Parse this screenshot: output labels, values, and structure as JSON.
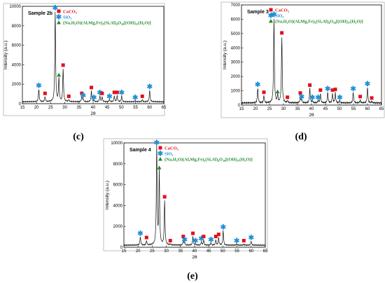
{
  "figure_labels": [
    "(c)",
    "(d)",
    "(e)"
  ],
  "colors": {
    "line": "#111111",
    "CaCO3": "#e0111c",
    "SiO2": "#1f8fd6",
    "mineral": "#1f8a2c"
  },
  "chart_data": [
    {
      "type": "line",
      "panel": "c",
      "sample_label": "Sample 2b",
      "xlabel": "2θ",
      "ylabel": "Intensity (a.u.)",
      "xlim": [
        15,
        65
      ],
      "ylim": [
        0,
        10000
      ],
      "xticks": [
        "15",
        "20",
        "25",
        "30",
        "35",
        "40",
        "45",
        "50",
        "55",
        "60",
        "65"
      ],
      "yticks": [
        "0",
        "2000",
        "4000",
        "6000",
        "8000",
        "10000"
      ],
      "legend": [
        {
          "name": "CaCO₃",
          "marker": "square",
          "color": "#e0111c"
        },
        {
          "name": "SiO₂",
          "marker": "asterisk",
          "color": "#1f8fd6"
        },
        {
          "name": "(Na,H₂O)(Al,Mg,Fe)₂(Si,Al)₄O₁₀[(OH)₂,(H₂O)]",
          "marker": "triangle",
          "color": "#1f8a2c"
        }
      ],
      "baseline": 200,
      "peaks": [
        {
          "x": 20.8,
          "y": 1500,
          "phase": "SiO2"
        },
        {
          "x": 23.0,
          "y": 700,
          "phase": "CaCO3"
        },
        {
          "x": 26.6,
          "y": 9500,
          "phase": "SiO2"
        },
        {
          "x": 27.9,
          "y": 2600,
          "phase": "mineral"
        },
        {
          "x": 29.4,
          "y": 3600,
          "phase": "CaCO3"
        },
        {
          "x": 31.4,
          "y": 400,
          "phase": "CaCO3"
        },
        {
          "x": 36.0,
          "y": 700,
          "phase": "CaCO3"
        },
        {
          "x": 36.5,
          "y": 500,
          "phase": "SiO2"
        },
        {
          "x": 39.4,
          "y": 1300,
          "phase": "CaCO3"
        },
        {
          "x": 40.3,
          "y": 300,
          "phase": "SiO2"
        },
        {
          "x": 42.4,
          "y": 800,
          "phase": "SiO2"
        },
        {
          "x": 43.2,
          "y": 700,
          "phase": "CaCO3"
        },
        {
          "x": 45.8,
          "y": 400,
          "phase": "SiO2"
        },
        {
          "x": 47.5,
          "y": 800,
          "phase": "CaCO3"
        },
        {
          "x": 48.5,
          "y": 800,
          "phase": "CaCO3"
        },
        {
          "x": 50.1,
          "y": 800,
          "phase": "SiO2"
        },
        {
          "x": 54.9,
          "y": 300,
          "phase": "SiO2"
        },
        {
          "x": 57.4,
          "y": 400,
          "phase": "CaCO3"
        },
        {
          "x": 60.0,
          "y": 1400,
          "phase": "SiO2"
        }
      ]
    },
    {
      "type": "line",
      "panel": "d",
      "sample_label": "Sample 3",
      "xlabel": "2θ",
      "ylabel": "Intensity (a.u.)",
      "xlim": [
        15,
        65
      ],
      "ylim": [
        0,
        7000
      ],
      "xticks": [
        "15",
        "20",
        "25",
        "30",
        "35",
        "40",
        "45",
        "50",
        "55",
        "60",
        "65"
      ],
      "yticks": [
        "0",
        "1000",
        "2000",
        "3000",
        "4000",
        "5000",
        "6000",
        "7000"
      ],
      "legend": [
        {
          "name": "CaCO₃",
          "marker": "square",
          "color": "#e0111c"
        },
        {
          "name": "SiO₂",
          "marker": "asterisk",
          "color": "#1f8fd6"
        },
        {
          "name": "(Na,H₂O)(Al,Mg,Fe)₂(Si,Al)₄O₁₀[(OH)₂,(H₂O)]",
          "marker": "triangle",
          "color": "#1f8a2c"
        }
      ],
      "baseline": 150,
      "peaks": [
        {
          "x": 20.8,
          "y": 1200,
          "phase": "SiO2"
        },
        {
          "x": 23.0,
          "y": 650,
          "phase": "CaCO3"
        },
        {
          "x": 26.6,
          "y": 6100,
          "phase": "SiO2"
        },
        {
          "x": 27.9,
          "y": 700,
          "phase": "mineral"
        },
        {
          "x": 29.4,
          "y": 4800,
          "phase": "CaCO3"
        },
        {
          "x": 31.4,
          "y": 300,
          "phase": "CaCO3"
        },
        {
          "x": 36.0,
          "y": 600,
          "phase": "CaCO3"
        },
        {
          "x": 36.5,
          "y": 350,
          "phase": "SiO2"
        },
        {
          "x": 39.4,
          "y": 1150,
          "phase": "CaCO3"
        },
        {
          "x": 40.3,
          "y": 300,
          "phase": "SiO2"
        },
        {
          "x": 42.4,
          "y": 300,
          "phase": "SiO2"
        },
        {
          "x": 43.2,
          "y": 800,
          "phase": "CaCO3"
        },
        {
          "x": 45.8,
          "y": 900,
          "phase": "SiO2"
        },
        {
          "x": 47.5,
          "y": 800,
          "phase": "CaCO3"
        },
        {
          "x": 48.5,
          "y": 850,
          "phase": "CaCO3"
        },
        {
          "x": 50.1,
          "y": 300,
          "phase": "SiO2"
        },
        {
          "x": 54.9,
          "y": 900,
          "phase": "SiO2"
        },
        {
          "x": 57.4,
          "y": 350,
          "phase": "CaCO3"
        },
        {
          "x": 60.0,
          "y": 1250,
          "phase": "SiO2"
        },
        {
          "x": 61.5,
          "y": 250,
          "phase": "CaCO3"
        }
      ]
    },
    {
      "type": "line",
      "panel": "e",
      "sample_label": "Sample 4",
      "xlabel": "2θ",
      "ylabel": "Intensity (a.u.)",
      "xlim": [
        15,
        65
      ],
      "ylim": [
        0,
        10000
      ],
      "xticks": [
        "15",
        "20",
        "25",
        "30",
        "35",
        "40",
        "45",
        "50",
        "55",
        "60",
        "65"
      ],
      "yticks": [
        "0",
        "2000",
        "4000",
        "6000",
        "8000",
        "10000"
      ],
      "legend": [
        {
          "name": "CaCO₃",
          "marker": "square",
          "color": "#e0111c"
        },
        {
          "name": "SiO₂",
          "marker": "asterisk",
          "color": "#1f8fd6"
        },
        {
          "name": "(Na,H₂O)(Al,Mg,Fe)₂(Si,Al)₄O₁₀[(OH)₂,(H₂O)]",
          "marker": "triangle",
          "color": "#1f8a2c"
        }
      ],
      "baseline": 200,
      "peaks": [
        {
          "x": 20.8,
          "y": 1000,
          "phase": "SiO2"
        },
        {
          "x": 23.0,
          "y": 600,
          "phase": "CaCO3"
        },
        {
          "x": 26.6,
          "y": 9700,
          "phase": "SiO2"
        },
        {
          "x": 27.5,
          "y": 7300,
          "phase": "mineral"
        },
        {
          "x": 29.4,
          "y": 4500,
          "phase": "CaCO3"
        },
        {
          "x": 31.4,
          "y": 300,
          "phase": "CaCO3"
        },
        {
          "x": 36.0,
          "y": 700,
          "phase": "CaCO3"
        },
        {
          "x": 36.5,
          "y": 400,
          "phase": "SiO2"
        },
        {
          "x": 39.4,
          "y": 1000,
          "phase": "CaCO3"
        },
        {
          "x": 40.3,
          "y": 300,
          "phase": "SiO2"
        },
        {
          "x": 42.4,
          "y": 500,
          "phase": "SiO2"
        },
        {
          "x": 43.2,
          "y": 700,
          "phase": "CaCO3"
        },
        {
          "x": 45.8,
          "y": 400,
          "phase": "SiO2"
        },
        {
          "x": 47.5,
          "y": 700,
          "phase": "CaCO3"
        },
        {
          "x": 48.5,
          "y": 900,
          "phase": "CaCO3"
        },
        {
          "x": 50.1,
          "y": 1600,
          "phase": "SiO2"
        },
        {
          "x": 54.9,
          "y": 300,
          "phase": "SiO2"
        },
        {
          "x": 57.4,
          "y": 300,
          "phase": "CaCO3"
        },
        {
          "x": 60.0,
          "y": 600,
          "phase": "SiO2"
        }
      ]
    }
  ]
}
